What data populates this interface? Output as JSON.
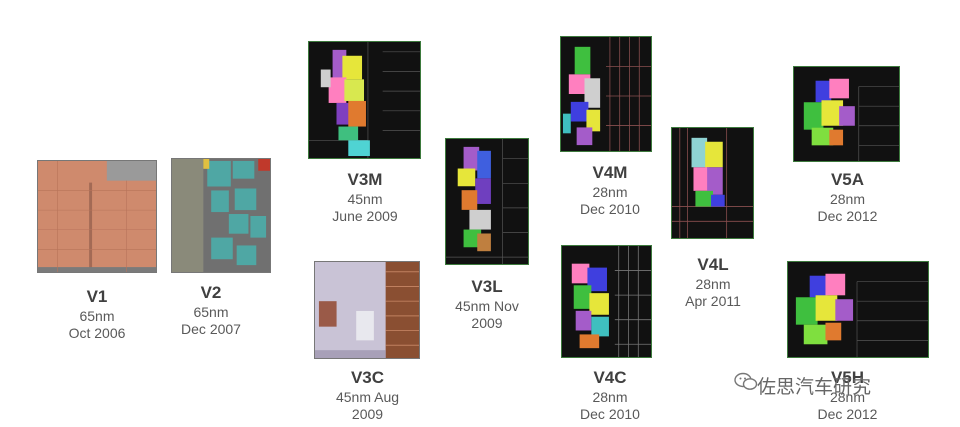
{
  "chips": [
    {
      "id": "v1",
      "name": "V1",
      "node": "65nm",
      "date": "Oct 2006"
    },
    {
      "id": "v2",
      "name": "V2",
      "node": "65nm",
      "date": "Dec 2007"
    },
    {
      "id": "v3m",
      "name": "V3M",
      "node": "45nm",
      "date": "June 2009"
    },
    {
      "id": "v3c",
      "name": "V3C",
      "node": "45nm Aug",
      "date": "2009"
    },
    {
      "id": "v3l",
      "name": "V3L",
      "node": "45nm Nov",
      "date": "2009"
    },
    {
      "id": "v4m",
      "name": "V4M",
      "node": "28nm",
      "date": "Dec 2010"
    },
    {
      "id": "v4c",
      "name": "V4C",
      "node": "28nm",
      "date": "Dec 2010"
    },
    {
      "id": "v4l",
      "name": "V4L",
      "node": "28nm",
      "date": "Apr 2011"
    },
    {
      "id": "v5a",
      "name": "V5A",
      "node": "28nm",
      "date": "Dec 2012"
    },
    {
      "id": "v5h",
      "name": "V5H",
      "node": "28nm",
      "date": "Dec 2012"
    }
  ],
  "watermark": {
    "text": "佐思汽车研究",
    "icon": "wechat-icon"
  },
  "colors": {
    "chip_border": "#3d7a3d",
    "die_dark": "#111111",
    "v1_die": "#d4876a",
    "v2_die": "#6e6e6e"
  }
}
